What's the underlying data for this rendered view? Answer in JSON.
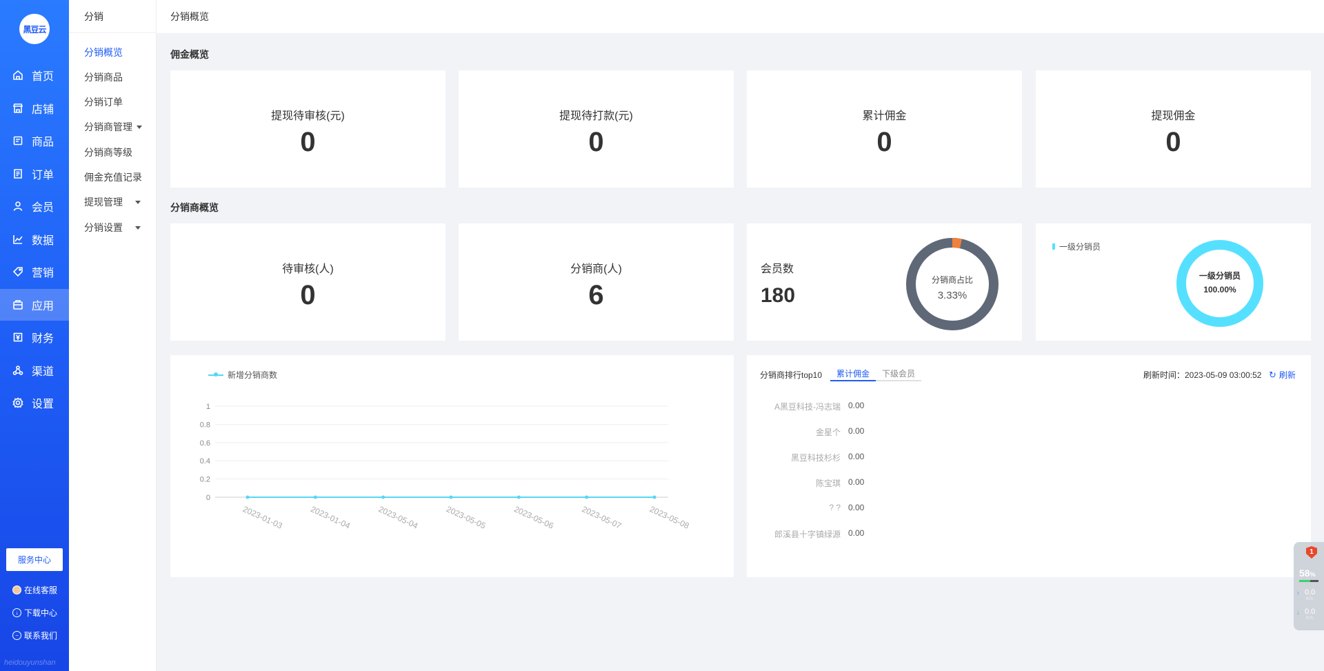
{
  "app": {
    "logo_text": "黑豆云"
  },
  "leftnav": {
    "items": [
      {
        "label": "首页",
        "icon": "home-icon"
      },
      {
        "label": "店铺",
        "icon": "store-icon"
      },
      {
        "label": "商品",
        "icon": "goods-icon"
      },
      {
        "label": "订单",
        "icon": "order-icon"
      },
      {
        "label": "会员",
        "icon": "user-icon"
      },
      {
        "label": "数据",
        "icon": "chart-icon"
      },
      {
        "label": "营销",
        "icon": "tag-icon"
      },
      {
        "label": "应用",
        "icon": "app-icon"
      },
      {
        "label": "财务",
        "icon": "finance-icon"
      },
      {
        "label": "渠道",
        "icon": "channel-icon"
      },
      {
        "label": "设置",
        "icon": "gear-icon"
      }
    ],
    "service_center": "服务中心",
    "online_service": "在线客服",
    "download_center": "下载中心",
    "contact_us": "联系我们",
    "watermark": "heidouyunshan"
  },
  "subnav": {
    "title": "分销",
    "items": [
      {
        "label": "分销概览"
      },
      {
        "label": "分销商品"
      },
      {
        "label": "分销订单"
      },
      {
        "label": "分销商管理"
      },
      {
        "label": "分销商等级"
      },
      {
        "label": "佣金充值记录"
      },
      {
        "label": "提现管理"
      },
      {
        "label": "分销设置"
      }
    ]
  },
  "breadcrumb": "分销概览",
  "commission": {
    "title": "佣金概览",
    "cards": [
      {
        "label": "提现待审核(元)",
        "value": "0"
      },
      {
        "label": "提现待打款(元)",
        "value": "0"
      },
      {
        "label": "累计佣金",
        "value": "0"
      },
      {
        "label": "提现佣金",
        "value": "0"
      }
    ]
  },
  "distributor": {
    "title": "分销商概览",
    "cards": [
      {
        "label": "待审核(人)",
        "value": "0"
      },
      {
        "label": "分销商(人)",
        "value": "6"
      }
    ],
    "members": {
      "label": "会员数",
      "value": "180",
      "donut_label": "分销商占比",
      "donut_value": "3.33%"
    },
    "level": {
      "legend": "一级分销员",
      "donut_label": "一级分销员",
      "donut_value": "100.00%"
    }
  },
  "colors": {
    "primary": "#1e5cf5",
    "donut_gray": "#5f6877",
    "donut_orange": "#f0803c",
    "cyan": "#56e0ff",
    "line": "#56d6f5"
  },
  "chart_data": {
    "type": "line",
    "legend": "新增分销商数",
    "x": [
      "2023-01-03",
      "2023-01-04",
      "2023-05-04",
      "2023-05-05",
      "2023-05-06",
      "2023-05-07",
      "2023-05-08"
    ],
    "series": [
      {
        "name": "新增分销商数",
        "values": [
          0,
          0,
          0,
          0,
          0,
          0,
          0
        ]
      }
    ],
    "yticks": [
      "0",
      "0.2",
      "0.4",
      "0.6",
      "0.8",
      "1"
    ],
    "ylim": [
      0,
      1
    ]
  },
  "ranking": {
    "title": "分销商排行top10",
    "tabs": [
      "累计佣金",
      "下级会员"
    ],
    "refresh_time_label": "刷新时间：2023-05-09 03:00:52",
    "refresh_label": "刷新",
    "rows": [
      {
        "name": "A黑豆科技-冯志瑞",
        "value": "0.00"
      },
      {
        "name": "金星个",
        "value": "0.00"
      },
      {
        "name": "黑豆科技杉杉",
        "value": "0.00"
      },
      {
        "name": "陈宝琪",
        "value": "0.00"
      },
      {
        "name": "? ?",
        "value": "0.00"
      },
      {
        "name": "郎溪县十字镇绿源",
        "value": "0.00"
      }
    ]
  },
  "widget": {
    "badge": "1",
    "percent": "58",
    "percent_unit": "%",
    "up": "0.0",
    "down": "0.0",
    "unit": "K/s"
  }
}
